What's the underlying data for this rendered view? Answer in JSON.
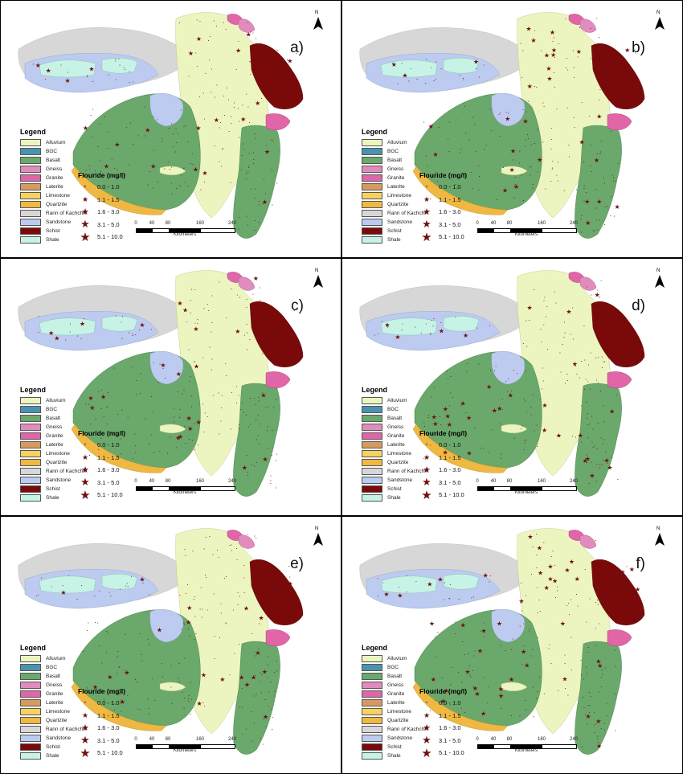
{
  "panels": [
    {
      "label": "a)"
    },
    {
      "label": "b)"
    },
    {
      "label": "c)"
    },
    {
      "label": "d)"
    },
    {
      "label": "e)"
    },
    {
      "label": "f)"
    }
  ],
  "north_label": "N",
  "legend": {
    "title": "Legend",
    "items": [
      {
        "label": "Alluvium",
        "color": "#ecf5c0"
      },
      {
        "label": "BGC",
        "color": "#4a93b0"
      },
      {
        "label": "Basalt",
        "color": "#6aa86b"
      },
      {
        "label": "Gneiss",
        "color": "#e08cbc"
      },
      {
        "label": "Granite",
        "color": "#e066a8"
      },
      {
        "label": "Laterite",
        "color": "#d79a5e"
      },
      {
        "label": "Limestone",
        "color": "#f7d25c"
      },
      {
        "label": "Quartzite",
        "color": "#eeb842"
      },
      {
        "label": "Rann of Kachchh",
        "color": "#d7d7d7"
      },
      {
        "label": "Sandstone",
        "color": "#bccbef"
      },
      {
        "label": "Schist",
        "color": "#7a0a0a"
      },
      {
        "label": "Shale",
        "color": "#c6f3e6"
      }
    ]
  },
  "fluoride": {
    "title": "Flouride (mg/l)",
    "classes": [
      "0.0 - 1.0",
      "1.1 - 1.5",
      "1.6 - 3.0",
      "3.1 - 5.0",
      "5.1 - 10.0"
    ],
    "marker_color": "#6e1010"
  },
  "scale": {
    "ticks": [
      "0",
      "40",
      "80",
      "160",
      "240"
    ],
    "unit": "Kilometers"
  }
}
